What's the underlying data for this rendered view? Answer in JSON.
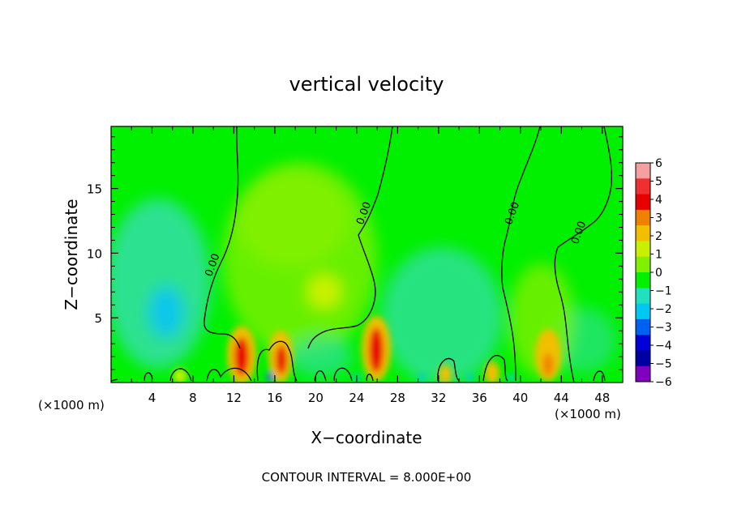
{
  "chart_data": {
    "type": "heatmap",
    "title": "vertical velocity",
    "xlabel": "X−coordinate",
    "ylabel": "Z−coordinate",
    "x_unit_label": "(×1000 m)",
    "xlim": [
      0,
      50
    ],
    "ylim": [
      0,
      19.8
    ],
    "x_ticks": [
      4,
      8,
      12,
      16,
      20,
      24,
      28,
      32,
      36,
      40,
      44,
      48
    ],
    "y_ticks": [
      5,
      10,
      15
    ],
    "x_tick_labels": [
      "4",
      "8",
      "12",
      "16",
      "20",
      "24",
      "28",
      "32",
      "36",
      "40",
      "44",
      "48"
    ],
    "y_tick_labels": [
      "5",
      "10",
      "15"
    ],
    "footer": "CONTOUR INTERVAL = 8.000E+00",
    "colorbar": {
      "levels": [
        6,
        5,
        4,
        3,
        2,
        1,
        0,
        -1,
        -2,
        -3,
        -4,
        -5,
        -6
      ],
      "labels": [
        "6",
        "5",
        "4",
        "3",
        "2",
        "1",
        "0",
        "−1",
        "−2",
        "−3",
        "−4",
        "−5",
        "−6"
      ],
      "colors": [
        "#f5a0a0",
        "#f03030",
        "#e80000",
        "#f08000",
        "#f0c000",
        "#c8f000",
        "#80f000",
        "#00f000",
        "#20e0c0",
        "#00c8f0",
        "#0060f0",
        "#0000d8",
        "#0000a0",
        "#8000c0"
      ]
    },
    "contour_labels": [
      {
        "text": "0.00",
        "x": 10.2,
        "y": 9.0
      },
      {
        "text": "0.00",
        "x": 25.0,
        "y": 13.0
      },
      {
        "text": "0.00",
        "x": 39.5,
        "y": 13.0
      },
      {
        "text": "0.00",
        "x": 46.0,
        "y": 11.5
      }
    ],
    "features": [
      {
        "x": 12.8,
        "z": 2.4,
        "w": 4.8,
        "kind": "updraft"
      },
      {
        "x": 16.8,
        "z": 2.0,
        "w": 4.2,
        "kind": "updraft"
      },
      {
        "x": 26.0,
        "z": 2.8,
        "w": 4.8,
        "kind": "updraft"
      },
      {
        "x": 42.8,
        "z": 2.4,
        "w": 3.8,
        "kind": "updraft"
      },
      {
        "x": 37.8,
        "z": 1.0,
        "w": 1.6,
        "kind": "updraft"
      },
      {
        "x": 32.8,
        "z": 0.8,
        "w": 1.4,
        "kind": "updraft"
      },
      {
        "x": 6.0,
        "z": 5.2,
        "w": -2.2,
        "kind": "downdraft"
      },
      {
        "x": 20.5,
        "z": 7.0,
        "w": 1.2,
        "kind": "updraft"
      }
    ]
  }
}
